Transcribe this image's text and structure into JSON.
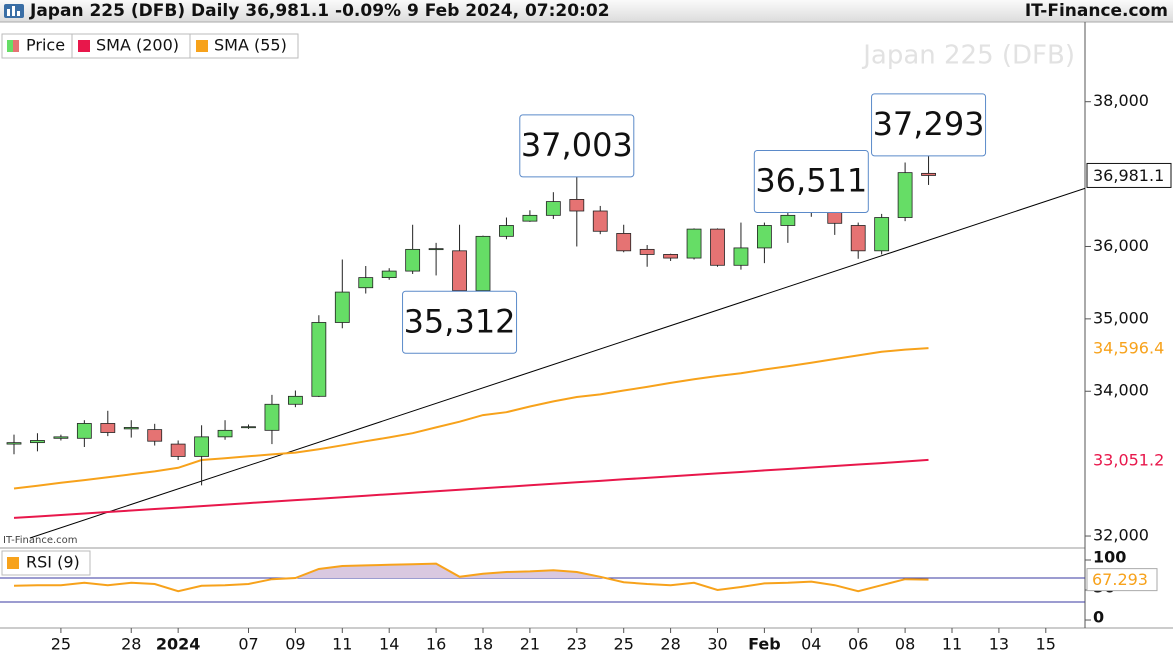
{
  "chart_data": {
    "type": "candlestick",
    "title": "Japan 225 (DFB) Daily 36,981.1 -0.09% 9 Feb 2024, 07:20:02",
    "source": "IT-Finance.com",
    "watermark": "Japan 225 (DFB)",
    "categories": [
      null,
      null,
      "25",
      null,
      null,
      "28",
      null,
      "2024",
      null,
      null,
      "07",
      null,
      "09",
      null,
      "11",
      null,
      "14",
      null,
      "16",
      null,
      "18",
      null,
      "21",
      null,
      "23",
      null,
      "25",
      null,
      "28",
      null,
      "30",
      null,
      "Feb",
      null,
      "04",
      null,
      "06",
      null,
      "08",
      null,
      "11",
      null,
      "13",
      null,
      "15"
    ],
    "price": {
      "name": "Price",
      "up_color": "#66dd66",
      "down_color": "#e57373",
      "open": [
        33270,
        33290,
        33350,
        33350,
        33555,
        33480,
        33470,
        33270,
        33100,
        33370,
        33500,
        33460,
        33820,
        33930,
        34950,
        35430,
        35570,
        35660,
        35960,
        35940,
        35390,
        36140,
        36350,
        36430,
        36650,
        36490,
        36180,
        35960,
        35890,
        35840,
        36240,
        35740,
        35980,
        36290,
        36470,
        36490,
        36290,
        35940,
        36400,
        37010,
        null,
        null,
        null,
        null,
        null
      ],
      "high": [
        33400,
        33420,
        33400,
        33600,
        33730,
        33600,
        33550,
        33320,
        33530,
        33600,
        33540,
        33950,
        34010,
        35050,
        35820,
        35730,
        35700,
        36300,
        36050,
        36300,
        36150,
        36400,
        36500,
        36750,
        37003,
        36560,
        36300,
        36020,
        35900,
        36250,
        36250,
        36330,
        36330,
        36480,
        36511,
        36500,
        36330,
        36450,
        37160,
        37293,
        null,
        null,
        null,
        null,
        null
      ],
      "low": [
        33130,
        33170,
        33320,
        33230,
        33380,
        33360,
        33250,
        33050,
        32700,
        33330,
        33480,
        33270,
        33780,
        33920,
        34870,
        35350,
        35540,
        35620,
        35600,
        35312,
        35350,
        36100,
        36340,
        36380,
        36000,
        36170,
        35920,
        35720,
        35800,
        35820,
        35720,
        35680,
        35770,
        36050,
        36410,
        36160,
        35830,
        35890,
        36350,
        36850,
        null,
        null,
        null,
        null,
        null
      ],
      "close": [
        33290,
        33320,
        33370,
        33555,
        33430,
        33500,
        33310,
        33100,
        33370,
        33460,
        33510,
        33820,
        33930,
        34950,
        35370,
        35570,
        35660,
        35960,
        35970,
        35390,
        36140,
        36290,
        36430,
        36620,
        36490,
        36210,
        35940,
        35890,
        35840,
        36240,
        35740,
        35980,
        36290,
        36430,
        36510,
        36320,
        35940,
        36400,
        37020,
        36981.1,
        null,
        null,
        null,
        null,
        null
      ],
      "high_labels": [
        null,
        null,
        null,
        null,
        null,
        null,
        null,
        null,
        null,
        null,
        null,
        null,
        null,
        null,
        null,
        null,
        null,
        null,
        null,
        null,
        null,
        null,
        null,
        null,
        "37,003",
        null,
        null,
        null,
        null,
        null,
        null,
        null,
        null,
        null,
        "36,511",
        null,
        null,
        null,
        null,
        "37,293",
        null,
        null,
        null,
        null,
        null
      ],
      "low_labels": [
        null,
        null,
        null,
        null,
        null,
        null,
        null,
        null,
        null,
        null,
        null,
        null,
        null,
        null,
        null,
        null,
        null,
        null,
        null,
        "35,312",
        null,
        null,
        null,
        null,
        null,
        null,
        null,
        null,
        null,
        null,
        null,
        null,
        null,
        null,
        null,
        null,
        null,
        null,
        null,
        null,
        null,
        null,
        null,
        null,
        null
      ],
      "last_label": "36,981.1"
    },
    "series": [
      {
        "name": "SMA (200)",
        "color": "#e8174b",
        "last_label": "33,051.2",
        "values": [
          32250,
          32270,
          32291,
          32311,
          32332,
          32352,
          32373,
          32393,
          32414,
          32434,
          32455,
          32475,
          32496,
          32516,
          32537,
          32557,
          32578,
          32598,
          32619,
          32639,
          32660,
          32680,
          32701,
          32721,
          32742,
          32762,
          32783,
          32803,
          32824,
          32844,
          32865,
          32885,
          32906,
          32926,
          32947,
          32967,
          32988,
          33008,
          33030,
          33051.2,
          null,
          null,
          null,
          null,
          null
        ]
      },
      {
        "name": "SMA (55)",
        "color": "#f7a21b",
        "last_label": "34,596.4",
        "values": [
          32657,
          32695,
          32735,
          32773,
          32813,
          32852,
          32893,
          32942,
          33050,
          33075,
          33102,
          33127,
          33152,
          33200,
          33253,
          33310,
          33363,
          33420,
          33500,
          33580,
          33670,
          33710,
          33790,
          33860,
          33920,
          33957,
          34010,
          34060,
          34115,
          34165,
          34210,
          34250,
          34300,
          34345,
          34395,
          34445,
          34495,
          34545,
          34575,
          34596.4,
          null,
          null,
          null,
          null,
          null
        ]
      }
    ],
    "trendline": {
      "color": "#000000",
      "x": [
        0.68,
        45.67
      ],
      "values": [
        31973,
        36803
      ]
    },
    "ylim": [
      31876,
      39101
    ],
    "yticks": [
      {
        "value": 32000,
        "label": "32,000"
      },
      {
        "value": 34000,
        "label": "34,000"
      },
      {
        "value": 35000,
        "label": "35,000"
      },
      {
        "value": 36000,
        "label": "36,000"
      },
      {
        "value": 38000,
        "label": "38,000"
      }
    ],
    "rsi": {
      "name": "RSI (9)",
      "color": "#f7a21b",
      "fill": "#d9c8e0",
      "level_color": "#3a3aa0",
      "values": [
        57,
        58,
        58,
        62,
        58,
        62,
        60,
        48,
        57,
        58,
        60,
        68,
        70,
        85,
        90,
        91,
        92,
        93,
        94,
        72,
        77,
        80,
        81,
        83,
        80,
        72,
        63,
        60,
        58,
        62,
        50,
        55,
        61,
        62,
        64,
        58,
        48,
        58,
        68,
        67.293,
        null,
        null,
        null,
        null,
        null
      ],
      "last_label": "67.293",
      "ylim": [
        -13.3,
        120
      ],
      "yticks": [
        0,
        50,
        100
      ],
      "levels": [
        70,
        30
      ]
    }
  }
}
